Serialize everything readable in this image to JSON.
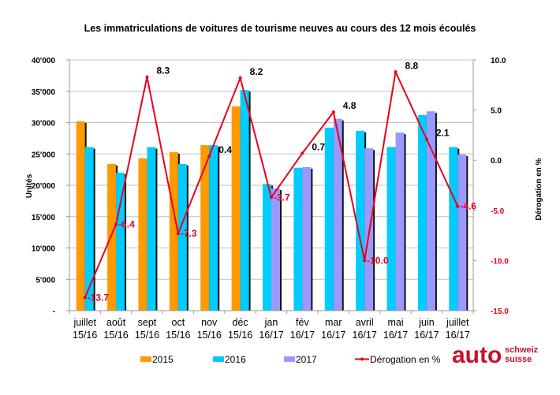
{
  "chart_data": {
    "type": "bar",
    "title": "Les immatriculations de voitures de tourisme neuves au cours des 12 mois écoulés",
    "categories": [
      [
        "juillet",
        "15/16"
      ],
      [
        "août",
        "15/16"
      ],
      [
        "sept",
        "15/16"
      ],
      [
        "oct",
        "15/16"
      ],
      [
        "nov",
        "15/16"
      ],
      [
        "déc",
        "15/16"
      ],
      [
        "jan",
        "16/17"
      ],
      [
        "fév",
        "16/17"
      ],
      [
        "mar",
        "16/17"
      ],
      [
        "avril",
        "16/17"
      ],
      [
        "mai",
        "16/17"
      ],
      [
        "juin",
        "16/17"
      ],
      [
        "juillet",
        "16/17"
      ]
    ],
    "ylabel": "Unités",
    "y2label": "Dérogation en %",
    "ylim": [
      0,
      40000
    ],
    "y2lim": [
      -15,
      10
    ],
    "yticks": [
      "-",
      "5'000",
      "10'000",
      "15'000",
      "20'000",
      "25'000",
      "30'000",
      "35'000",
      "40'000"
    ],
    "y2ticks": [
      "-15.0",
      "-10.0",
      "-5.0",
      "0.0",
      "5.0",
      "10.0"
    ],
    "grid": true,
    "legend_position": "bottom",
    "series": [
      {
        "name": "2015",
        "type": "bar",
        "color": "#ff9900",
        "values": [
          30200,
          23400,
          24300,
          25300,
          26400,
          32600,
          null,
          null,
          null,
          null,
          null,
          null,
          null
        ]
      },
      {
        "name": "2016",
        "type": "bar",
        "color": "#00ccff",
        "values": [
          26100,
          22000,
          26100,
          23400,
          26400,
          35200,
          20200,
          22800,
          29200,
          28700,
          26100,
          31200,
          26100
        ]
      },
      {
        "name": "2017",
        "type": "bar",
        "color": "#9999ff",
        "values": [
          null,
          null,
          null,
          null,
          null,
          null,
          19500,
          22900,
          30600,
          25900,
          28400,
          31800,
          24900
        ]
      },
      {
        "name": "Dérogation en %",
        "type": "line",
        "axis": "right",
        "color": "#e8001c",
        "values": [
          -13.7,
          -6.4,
          8.3,
          -7.3,
          0.4,
          8.2,
          -3.7,
          0.7,
          4.8,
          -10.0,
          8.8,
          2.1,
          -4.6
        ],
        "labels": [
          "-13.7",
          "-6.4",
          "8.3",
          "-7.3",
          "0.4",
          "8.2",
          "-3.7",
          "0.7",
          "4.8",
          "-10.0",
          "8.8",
          "2.1",
          "-4.6"
        ]
      }
    ],
    "legend": [
      "2015",
      "2016",
      "2017",
      "Dérogation en %"
    ],
    "colors": {
      "positive_label": "#000000",
      "negative_label": "#e8001c",
      "negative_tick": "#e8001c",
      "grid": "#c0c0c0"
    }
  },
  "logo": {
    "main": "auto",
    "line1": "schweiz",
    "line2": "suisse"
  }
}
